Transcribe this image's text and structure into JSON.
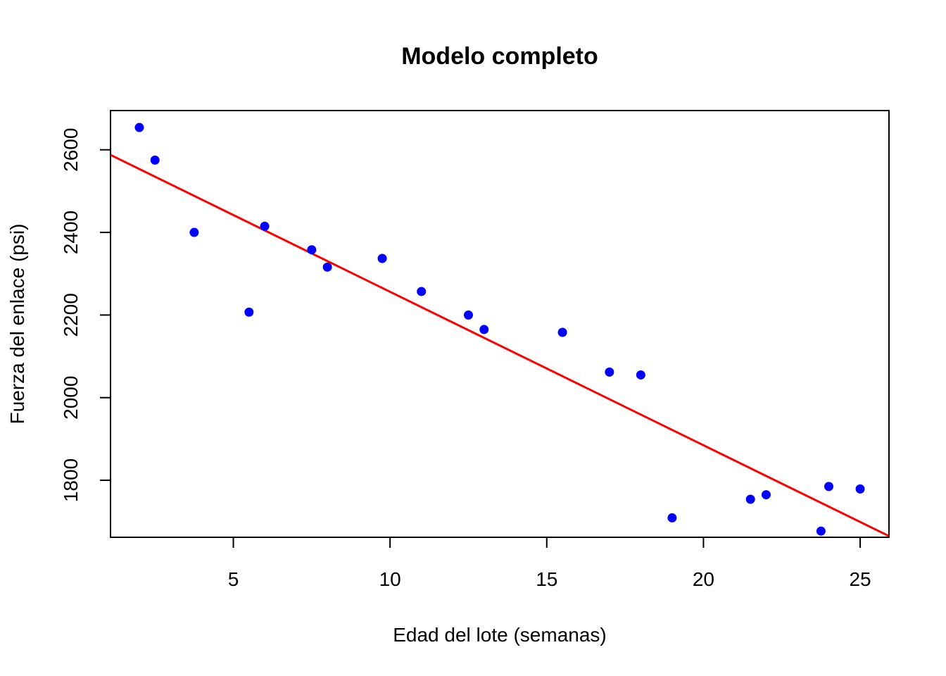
{
  "chart_data": {
    "type": "scatter",
    "title": "Modelo completo",
    "xlabel": "Edad del lote (semanas)",
    "ylabel": "Fuerza del enlace (psi)",
    "xlim": [
      1.08,
      25.92
    ],
    "ylim": [
      1662,
      2695
    ],
    "x_ticks": [
      5,
      10,
      15,
      20,
      25
    ],
    "y_ticks": [
      1800,
      2000,
      2200,
      2400,
      2600
    ],
    "grid": false,
    "legend": "none",
    "point_color": "#0000FF",
    "line_color": "#FF0000",
    "points": [
      {
        "x": 2.0,
        "y": 2654
      },
      {
        "x": 2.5,
        "y": 2575
      },
      {
        "x": 3.75,
        "y": 2400
      },
      {
        "x": 5.5,
        "y": 2207
      },
      {
        "x": 6.0,
        "y": 2415
      },
      {
        "x": 7.5,
        "y": 2358
      },
      {
        "x": 8.0,
        "y": 2316
      },
      {
        "x": 9.75,
        "y": 2337
      },
      {
        "x": 11.0,
        "y": 2257
      },
      {
        "x": 12.5,
        "y": 2200
      },
      {
        "x": 13.0,
        "y": 2165
      },
      {
        "x": 15.5,
        "y": 2158
      },
      {
        "x": 17.0,
        "y": 2062
      },
      {
        "x": 18.0,
        "y": 2055
      },
      {
        "x": 19.0,
        "y": 1709
      },
      {
        "x": 21.5,
        "y": 1754
      },
      {
        "x": 22.0,
        "y": 1765
      },
      {
        "x": 23.75,
        "y": 1677
      },
      {
        "x": 24.0,
        "y": 1785
      },
      {
        "x": 25.0,
        "y": 1779
      }
    ],
    "fit_line": {
      "intercept": 2627.8,
      "slope": -37.15
    }
  }
}
